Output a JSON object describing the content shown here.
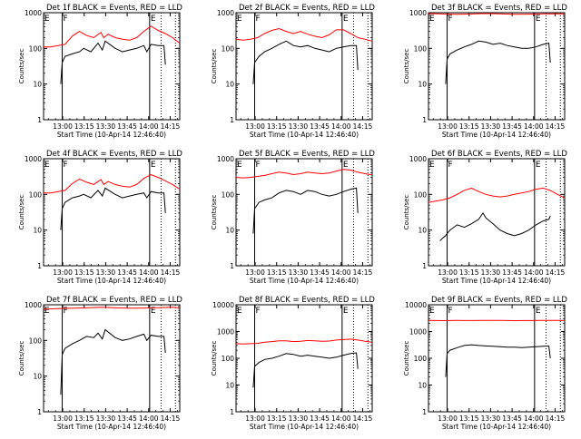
{
  "ylabel": "Counts/sec",
  "xlabel": "Start Time (10-Apr-14 12:46:40)",
  "xtick_labels": [
    "13:00",
    "13:15",
    "13:30",
    "13:45",
    "14:00",
    "14:15"
  ],
  "ytick_labels": [
    "1",
    "10",
    "100",
    "1000",
    "10000"
  ],
  "marker_labels": {
    "F": "F",
    "E": "E"
  },
  "colors": {
    "events": "#000000",
    "lld": "#ff0000",
    "axes": "#000000",
    "background": "#ffffff"
  },
  "chart_data": [
    {
      "type": "line",
      "title": "Det 1f BLACK = Events, RED = LLD",
      "xlabel": "Start Time (10-Apr-14 12:46:40)",
      "ylabel": "Counts/sec",
      "yscale": "log",
      "ylim": [
        1,
        1000
      ],
      "x_minutes_from_start": [
        0,
        95
      ],
      "markers": [
        {
          "label": "F",
          "solid": 13
        },
        {
          "label": "E",
          "solid": 74,
          "dotted": 82
        },
        {
          "dotted": 92
        }
      ],
      "series": [
        {
          "name": "Events",
          "color": "#000000",
          "x": [
            12,
            13,
            15,
            20,
            25,
            28,
            33,
            38,
            41,
            43,
            50,
            55,
            60,
            65,
            70,
            72,
            75,
            80,
            84,
            85
          ],
          "y": [
            10,
            40,
            60,
            70,
            80,
            100,
            80,
            140,
            90,
            160,
            100,
            80,
            90,
            100,
            120,
            80,
            130,
            120,
            120,
            35
          ]
        },
        {
          "name": "LLD",
          "color": "#ff0000",
          "x": [
            0,
            5,
            10,
            15,
            20,
            25,
            30,
            35,
            40,
            42,
            45,
            50,
            55,
            60,
            65,
            70,
            75,
            80,
            85,
            90,
            95
          ],
          "y": [
            110,
            110,
            120,
            130,
            220,
            300,
            230,
            200,
            280,
            200,
            250,
            200,
            180,
            170,
            200,
            300,
            420,
            320,
            260,
            200,
            140
          ]
        }
      ]
    },
    {
      "type": "line",
      "title": "Det 2f BLACK = Events, RED = LLD",
      "xlabel": "Start Time (10-Apr-14 12:46:40)",
      "ylabel": "Counts/sec",
      "yscale": "log",
      "ylim": [
        1,
        1000
      ],
      "x_minutes_from_start": [
        0,
        95
      ],
      "markers": [
        {
          "label": "F",
          "solid": 13
        },
        {
          "label": "E",
          "solid": 74,
          "dotted": 82
        },
        {
          "dotted": 92
        }
      ],
      "series": [
        {
          "name": "Events",
          "color": "#000000",
          "x": [
            12,
            13,
            16,
            20,
            25,
            30,
            35,
            40,
            45,
            50,
            55,
            60,
            65,
            70,
            75,
            80,
            84,
            85
          ],
          "y": [
            10,
            40,
            60,
            80,
            100,
            130,
            160,
            120,
            110,
            120,
            100,
            90,
            80,
            100,
            110,
            120,
            120,
            25
          ]
        },
        {
          "name": "LLD",
          "color": "#ff0000",
          "x": [
            0,
            5,
            10,
            15,
            20,
            25,
            30,
            35,
            40,
            45,
            50,
            55,
            60,
            65,
            70,
            75,
            80,
            85,
            90,
            95
          ],
          "y": [
            180,
            170,
            180,
            200,
            260,
            320,
            360,
            300,
            260,
            300,
            250,
            220,
            200,
            240,
            330,
            330,
            260,
            200,
            180,
            160
          ]
        }
      ]
    },
    {
      "type": "line",
      "title": "Det 3f BLACK = Events, RED = LLD",
      "xlabel": "Start Time (10-Apr-14 12:46:40)",
      "ylabel": "Counts/sec",
      "yscale": "log",
      "ylim": [
        1,
        1000
      ],
      "x_minutes_from_start": [
        0,
        95
      ],
      "markers": [
        {
          "label": "F",
          "solid": 13
        },
        {
          "label": "E",
          "solid": 74,
          "dotted": 82
        },
        {
          "dotted": 92
        }
      ],
      "series": [
        {
          "name": "Events",
          "color": "#000000",
          "x": [
            12,
            13,
            15,
            20,
            25,
            30,
            35,
            40,
            45,
            50,
            55,
            60,
            65,
            70,
            75,
            80,
            84,
            85
          ],
          "y": [
            10,
            50,
            70,
            90,
            110,
            130,
            160,
            150,
            130,
            140,
            120,
            110,
            100,
            100,
            110,
            130,
            140,
            40
          ]
        },
        {
          "name": "LLD",
          "color": "#ff0000",
          "x": [
            0,
            10,
            20,
            30,
            40,
            50,
            60,
            70,
            80,
            90,
            95
          ],
          "y": [
            950,
            920,
            900,
            920,
            950,
            930,
            900,
            910,
            930,
            940,
            920
          ]
        }
      ]
    },
    {
      "type": "line",
      "title": "Det 4f BLACK = Events, RED = LLD",
      "xlabel": "Start Time (10-Apr-14 12:46:40)",
      "ylabel": "Counts/sec",
      "yscale": "log",
      "ylim": [
        1,
        1000
      ],
      "x_minutes_from_start": [
        0,
        95
      ],
      "markers": [
        {
          "label": "F",
          "solid": 13
        },
        {
          "label": "E",
          "solid": 74,
          "dotted": 82
        },
        {
          "dotted": 92
        }
      ],
      "series": [
        {
          "name": "Events",
          "color": "#000000",
          "x": [
            12,
            13,
            15,
            20,
            25,
            28,
            33,
            38,
            41,
            43,
            50,
            55,
            60,
            65,
            70,
            72,
            75,
            80,
            84,
            85
          ],
          "y": [
            10,
            40,
            60,
            80,
            90,
            100,
            80,
            130,
            90,
            150,
            100,
            80,
            90,
            100,
            110,
            80,
            120,
            110,
            110,
            30
          ]
        },
        {
          "name": "LLD",
          "color": "#ff0000",
          "x": [
            0,
            5,
            10,
            15,
            20,
            25,
            30,
            35,
            40,
            42,
            45,
            50,
            55,
            60,
            65,
            70,
            75,
            80,
            85,
            90,
            95
          ],
          "y": [
            110,
            110,
            120,
            130,
            200,
            270,
            220,
            190,
            260,
            190,
            230,
            190,
            170,
            160,
            190,
            280,
            360,
            300,
            240,
            190,
            140
          ]
        }
      ]
    },
    {
      "type": "line",
      "title": "Det 5f BLACK = Events, RED = LLD",
      "xlabel": "Start Time (10-Apr-14 12:46:40)",
      "ylabel": "Counts/sec",
      "yscale": "log",
      "ylim": [
        1,
        1000
      ],
      "x_minutes_from_start": [
        0,
        95
      ],
      "markers": [
        {
          "label": "F",
          "solid": 13
        },
        {
          "label": "E",
          "solid": 74,
          "dotted": 82
        },
        {
          "dotted": 92
        }
      ],
      "series": [
        {
          "name": "Events",
          "color": "#000000",
          "x": [
            12,
            13,
            16,
            20,
            25,
            30,
            35,
            40,
            45,
            50,
            55,
            60,
            65,
            70,
            75,
            80,
            84,
            85
          ],
          "y": [
            8,
            40,
            60,
            70,
            80,
            110,
            130,
            120,
            100,
            130,
            120,
            100,
            90,
            100,
            120,
            140,
            150,
            30
          ]
        },
        {
          "name": "LLD",
          "color": "#ff0000",
          "x": [
            0,
            5,
            10,
            15,
            20,
            25,
            30,
            35,
            40,
            45,
            50,
            55,
            60,
            65,
            70,
            75,
            80,
            85,
            90,
            95
          ],
          "y": [
            300,
            290,
            300,
            320,
            340,
            380,
            420,
            400,
            360,
            380,
            420,
            400,
            380,
            400,
            450,
            500,
            480,
            420,
            380,
            350
          ]
        }
      ]
    },
    {
      "type": "line",
      "title": "Det 6f BLACK = Events, RED = LLD",
      "xlabel": "Start Time (10-Apr-14 12:46:40)",
      "ylabel": "Counts/sec",
      "yscale": "log",
      "ylim": [
        1,
        1000
      ],
      "x_minutes_from_start": [
        0,
        95
      ],
      "markers": [
        {
          "label": "F",
          "solid": 13
        },
        {
          "label": "E",
          "solid": 74,
          "dotted": 82
        },
        {
          "dotted": 92
        }
      ],
      "series": [
        {
          "name": "Events",
          "color": "#000000",
          "x": [
            8,
            10,
            12,
            13,
            15,
            20,
            25,
            30,
            35,
            38,
            40,
            45,
            50,
            55,
            60,
            65,
            70,
            75,
            80,
            84,
            85
          ],
          "y": [
            5,
            6,
            7,
            8,
            10,
            14,
            12,
            15,
            20,
            30,
            22,
            15,
            10,
            8,
            7,
            8,
            10,
            14,
            18,
            20,
            25
          ]
        },
        {
          "name": "LLD",
          "color": "#ff0000",
          "x": [
            0,
            5,
            10,
            15,
            20,
            25,
            30,
            35,
            40,
            45,
            50,
            55,
            60,
            65,
            70,
            75,
            80,
            85,
            90,
            95
          ],
          "y": [
            60,
            65,
            70,
            80,
            100,
            130,
            150,
            120,
            100,
            90,
            85,
            90,
            100,
            110,
            120,
            140,
            150,
            130,
            100,
            80
          ]
        }
      ]
    },
    {
      "type": "line",
      "title": "Det 7f BLACK = Events, RED = LLD",
      "xlabel": "Start Time (10-Apr-14 12:46:40)",
      "ylabel": "Counts/sec",
      "yscale": "log",
      "ylim": [
        1,
        1000
      ],
      "x_minutes_from_start": [
        0,
        95
      ],
      "markers": [
        {
          "label": "F",
          "solid": 13
        },
        {
          "label": "E",
          "solid": 74,
          "dotted": 82
        },
        {
          "dotted": 92
        }
      ],
      "series": [
        {
          "name": "Events",
          "color": "#000000",
          "x": [
            12,
            13,
            15,
            20,
            25,
            30,
            35,
            38,
            41,
            43,
            50,
            55,
            60,
            65,
            70,
            72,
            75,
            80,
            84,
            85
          ],
          "y": [
            3,
            40,
            60,
            80,
            100,
            130,
            120,
            160,
            110,
            200,
            120,
            100,
            110,
            130,
            150,
            100,
            140,
            130,
            130,
            45
          ]
        },
        {
          "name": "LLD",
          "color": "#ff0000",
          "x": [
            0,
            10,
            20,
            30,
            40,
            50,
            60,
            70,
            80,
            90,
            95
          ],
          "y": [
            750,
            780,
            800,
            820,
            850,
            820,
            800,
            810,
            830,
            850,
            820
          ]
        }
      ]
    },
    {
      "type": "line",
      "title": "Det 8f BLACK = Events, RED = LLD",
      "xlabel": "Start Time (10-Apr-14 12:46:40)",
      "ylabel": "Counts/sec",
      "yscale": "log",
      "ylim": [
        1,
        10000
      ],
      "x_minutes_from_start": [
        0,
        95
      ],
      "markers": [
        {
          "label": "F",
          "solid": 13
        },
        {
          "label": "E",
          "solid": 74,
          "dotted": 82
        },
        {
          "dotted": 92
        }
      ],
      "series": [
        {
          "name": "Events",
          "color": "#000000",
          "x": [
            12,
            13,
            16,
            20,
            25,
            30,
            35,
            40,
            45,
            50,
            55,
            60,
            65,
            70,
            75,
            80,
            84,
            85
          ],
          "y": [
            8,
            50,
            70,
            90,
            100,
            120,
            150,
            140,
            120,
            130,
            120,
            110,
            100,
            110,
            130,
            150,
            160,
            40
          ]
        },
        {
          "name": "LLD",
          "color": "#ff0000",
          "x": [
            0,
            5,
            10,
            15,
            20,
            25,
            30,
            35,
            40,
            45,
            50,
            55,
            60,
            65,
            70,
            75,
            80,
            85,
            90,
            95
          ],
          "y": [
            350,
            340,
            350,
            360,
            400,
            420,
            450,
            450,
            420,
            430,
            460,
            450,
            430,
            440,
            480,
            500,
            520,
            480,
            430,
            400
          ]
        }
      ]
    },
    {
      "type": "line",
      "title": "Det 9f BLACK = Events, RED = LLD",
      "xlabel": "Start Time (10-Apr-14 12:46:40)",
      "ylabel": "Counts/sec",
      "yscale": "log",
      "ylim": [
        1,
        10000
      ],
      "x_minutes_from_start": [
        0,
        95
      ],
      "markers": [
        {
          "label": "F",
          "solid": 13
        },
        {
          "label": "E",
          "solid": 74,
          "dotted": 82
        },
        {
          "dotted": 92
        }
      ],
      "series": [
        {
          "name": "Events",
          "color": "#000000",
          "x": [
            12,
            13,
            15,
            20,
            25,
            30,
            35,
            40,
            45,
            50,
            55,
            60,
            65,
            70,
            75,
            80,
            84,
            85
          ],
          "y": [
            20,
            150,
            200,
            250,
            300,
            320,
            300,
            290,
            280,
            270,
            260,
            260,
            250,
            260,
            270,
            280,
            290,
            100
          ]
        },
        {
          "name": "LLD",
          "color": "#ff0000",
          "x": [
            0,
            10,
            20,
            30,
            40,
            50,
            60,
            70,
            80,
            90,
            95
          ],
          "y": [
            2600,
            2550,
            2600,
            2580,
            2620,
            2600,
            2550,
            2580,
            2600,
            2590,
            2570
          ]
        }
      ]
    }
  ]
}
